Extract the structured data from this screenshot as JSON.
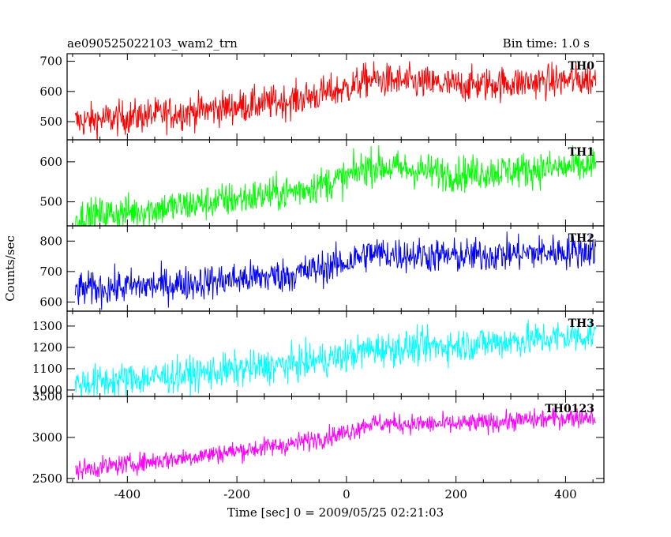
{
  "chart_data": {
    "type": "line",
    "title": "ae090525022103_wam2_trn",
    "subtitle": "Bin time: 1.0 s",
    "xlabel": "Time [sec] 0 = 2009/05/25 02:21:03",
    "ylabel": "Counts/sec",
    "xlim": [
      -510,
      470
    ],
    "x_range": [
      -495,
      455
    ],
    "x_ticks": [
      -400,
      -200,
      0,
      200,
      400
    ],
    "grid": false,
    "panels": [
      {
        "name": "TH0",
        "color": "#ff0000",
        "ylim": [
          440,
          725
        ],
        "y_ticks": [
          500,
          600,
          700
        ],
        "trend_x": [
          -495,
          -300,
          -100,
          0,
          40,
          200,
          455
        ],
        "trend_y": [
          500,
          530,
          570,
          610,
          640,
          620,
          640
        ],
        "noise": 28
      },
      {
        "name": "TH1",
        "color": "#00ff00",
        "ylim": [
          440,
          655
        ],
        "y_ticks": [
          500,
          600
        ],
        "trend_x": [
          -495,
          -300,
          -100,
          0,
          40,
          200,
          455
        ],
        "trend_y": [
          460,
          490,
          525,
          560,
          590,
          570,
          590
        ],
        "noise": 22
      },
      {
        "name": "TH2",
        "color": "#0000ff",
        "ylim": [
          570,
          850
        ],
        "y_ticks": [
          600,
          700,
          800
        ],
        "trend_x": [
          -495,
          -300,
          -100,
          0,
          40,
          200,
          455
        ],
        "trend_y": [
          640,
          660,
          690,
          730,
          760,
          750,
          770
        ],
        "noise": 28
      },
      {
        "name": "TH3",
        "color": "#00ffff",
        "ylim": [
          970,
          1370
        ],
        "y_ticks": [
          1000,
          1100,
          1200,
          1300
        ],
        "trend_x": [
          -495,
          -300,
          -100,
          0,
          40,
          200,
          455
        ],
        "trend_y": [
          1030,
          1070,
          1120,
          1160,
          1190,
          1210,
          1260
        ],
        "noise": 40
      },
      {
        "name": "TH0123",
        "color": "#ff00ff",
        "ylim": [
          2450,
          3500
        ],
        "y_ticks": [
          2500,
          3000,
          3500
        ],
        "trend_x": [
          -495,
          -300,
          -100,
          0,
          40,
          200,
          455
        ],
        "trend_y": [
          2600,
          2750,
          2920,
          3060,
          3170,
          3160,
          3260
        ],
        "noise": 60
      }
    ]
  }
}
